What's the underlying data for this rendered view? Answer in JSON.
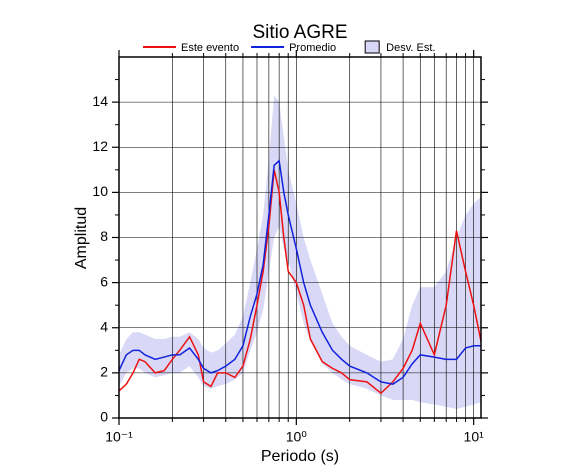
{
  "chart_data": {
    "type": "line",
    "title": "Sitio AGRE",
    "xlabel": "Periodo (s)",
    "ylabel": "Amplitud",
    "log_x": true,
    "grid": true,
    "xlim": [
      0.1,
      11
    ],
    "ylim": [
      0,
      16
    ],
    "xticks": [
      {
        "value": 0.1,
        "label": "10⁻¹"
      },
      {
        "value": 1,
        "label": "10⁰"
      },
      {
        "value": 10,
        "label": "10¹"
      }
    ],
    "yticks": [
      0,
      2,
      4,
      6,
      8,
      10,
      12,
      14
    ],
    "x": [
      0.1,
      0.11,
      0.12,
      0.13,
      0.14,
      0.16,
      0.18,
      0.2,
      0.22,
      0.25,
      0.28,
      0.3,
      0.33,
      0.36,
      0.4,
      0.45,
      0.5,
      0.55,
      0.6,
      0.65,
      0.7,
      0.75,
      0.8,
      0.85,
      0.9,
      1.0,
      1.1,
      1.2,
      1.4,
      1.6,
      1.8,
      2.0,
      2.5,
      3.0,
      3.5,
      4.0,
      4.5,
      5.0,
      6.0,
      7.0,
      8.0,
      9.0,
      10,
      11
    ],
    "band": {
      "name": "Desv. Est.",
      "color": "#d9d9f7",
      "upper": [
        2.8,
        3.5,
        3.8,
        3.8,
        3.7,
        3.5,
        3.5,
        3.6,
        3.6,
        3.8,
        3.5,
        3.1,
        2.9,
        3.0,
        3.3,
        3.7,
        4.5,
        6.0,
        7.5,
        9.0,
        11.5,
        14.3,
        14.0,
        12.5,
        11.0,
        9.5,
        8.0,
        7.0,
        5.5,
        4.2,
        3.6,
        3.2,
        2.8,
        2.5,
        2.6,
        3.5,
        5.0,
        5.8,
        5.8,
        6.5,
        8.0,
        9.0,
        9.5,
        9.8
      ],
      "lower": [
        1.4,
        2.0,
        2.2,
        2.2,
        2.0,
        1.8,
        1.9,
        2.0,
        2.0,
        2.3,
        1.8,
        1.4,
        1.3,
        1.4,
        1.5,
        1.7,
        2.0,
        3.0,
        3.8,
        4.8,
        6.5,
        8.0,
        8.5,
        7.5,
        7.0,
        5.5,
        4.2,
        3.4,
        2.4,
        2.0,
        1.7,
        1.5,
        1.3,
        1.0,
        0.8,
        0.8,
        0.8,
        0.7,
        0.6,
        0.5,
        0.4,
        0.5,
        0.6,
        0.7
      ]
    },
    "series": [
      {
        "name": "Este evento",
        "color": "#ee1111",
        "values": [
          1.2,
          1.5,
          2.0,
          2.6,
          2.5,
          2.0,
          2.1,
          2.6,
          3.0,
          3.6,
          2.8,
          1.6,
          1.4,
          2.0,
          2.0,
          1.8,
          2.3,
          3.5,
          5.0,
          6.5,
          8.5,
          11.0,
          10.0,
          8.0,
          6.5,
          6.0,
          5.0,
          3.5,
          2.5,
          2.2,
          2.0,
          1.7,
          1.6,
          1.1,
          1.6,
          2.2,
          3.0,
          4.2,
          2.8,
          5.0,
          8.3,
          6.5,
          5.0,
          3.4
        ]
      },
      {
        "name": "Promedio",
        "color": "#1122dd",
        "values": [
          2.1,
          2.8,
          3.0,
          3.0,
          2.8,
          2.6,
          2.7,
          2.8,
          2.8,
          3.1,
          2.6,
          2.2,
          2.0,
          2.1,
          2.3,
          2.6,
          3.2,
          4.5,
          5.5,
          6.8,
          9.0,
          11.2,
          11.4,
          10.0,
          9.0,
          7.5,
          6.0,
          5.0,
          3.8,
          3.0,
          2.6,
          2.3,
          2.0,
          1.6,
          1.5,
          1.8,
          2.4,
          2.8,
          2.7,
          2.6,
          2.6,
          3.1,
          3.2,
          3.2
        ]
      }
    ]
  }
}
